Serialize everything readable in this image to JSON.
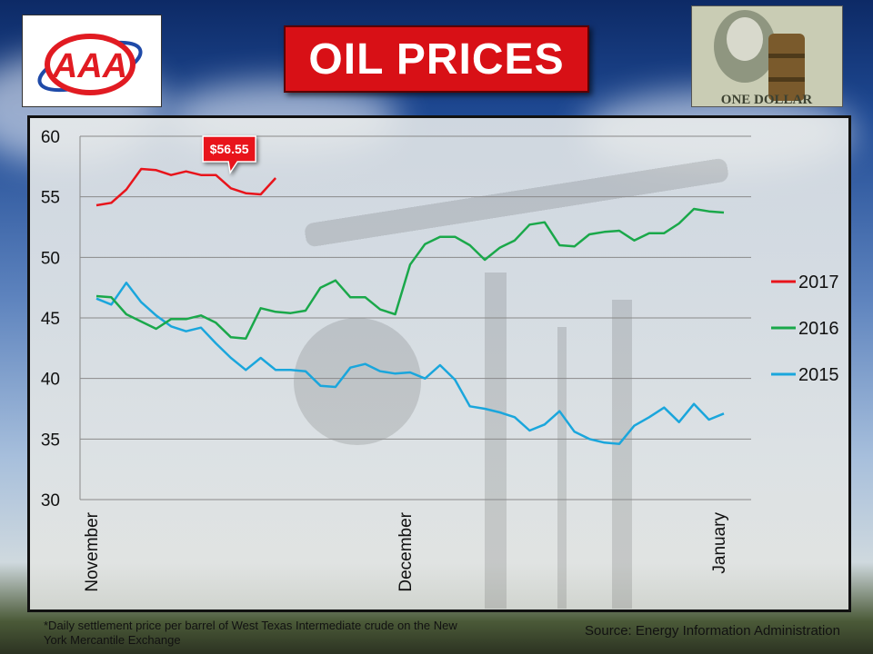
{
  "header": {
    "logo_text": "AAA",
    "title": "OIL PRICES",
    "money_text": "ONE DOLLAR"
  },
  "footnote": "*Daily settlement price per barrel of West Texas Intermediate crude on the New York Mercantile Exchange",
  "source": "Source: Energy Information  Administration",
  "chart_data": {
    "type": "line",
    "title": "",
    "xlabel": "",
    "ylabel": "",
    "ylim": [
      30,
      60
    ],
    "yticks": [
      30,
      35,
      40,
      45,
      50,
      55,
      60
    ],
    "grid": true,
    "legend_position": "right",
    "x_labels": [
      "November",
      "December",
      "January"
    ],
    "callout": {
      "label": "$56.55",
      "series": "2017",
      "value": 56.55
    },
    "series": [
      {
        "name": "2017",
        "color": "#e8141b",
        "values": [
          54.3,
          54.5,
          55.6,
          57.3,
          57.2,
          56.8,
          57.1,
          56.8,
          56.8,
          55.7,
          55.3,
          55.2,
          56.55
        ]
      },
      {
        "name": "2016",
        "color": "#1aa84a",
        "values": [
          46.8,
          46.7,
          45.3,
          44.7,
          44.1,
          44.9,
          44.9,
          45.2,
          44.6,
          43.4,
          43.3,
          45.8,
          45.5,
          45.4,
          45.6,
          47.5,
          48.1,
          46.7,
          46.7,
          45.7,
          45.3,
          49.4,
          51.1,
          51.7,
          51.7,
          51.0,
          49.8,
          50.8,
          51.4,
          52.7,
          52.9,
          51.0,
          50.9,
          51.9,
          52.1,
          52.2,
          51.4,
          52.0,
          52.0,
          52.8,
          54.0,
          53.8,
          53.7
        ]
      },
      {
        "name": "2015",
        "color": "#1aa6dc",
        "values": [
          46.6,
          46.1,
          47.9,
          46.3,
          45.2,
          44.3,
          43.9,
          44.2,
          42.9,
          41.7,
          40.7,
          41.7,
          40.7,
          40.7,
          40.6,
          39.4,
          39.3,
          40.9,
          41.2,
          40.6,
          40.4,
          40.5,
          40.0,
          41.1,
          39.9,
          37.7,
          37.5,
          37.2,
          36.8,
          35.7,
          36.2,
          37.3,
          35.6,
          35.0,
          34.7,
          34.6,
          36.1,
          36.8,
          37.6,
          36.4,
          37.9,
          36.6,
          37.1
        ]
      }
    ]
  }
}
